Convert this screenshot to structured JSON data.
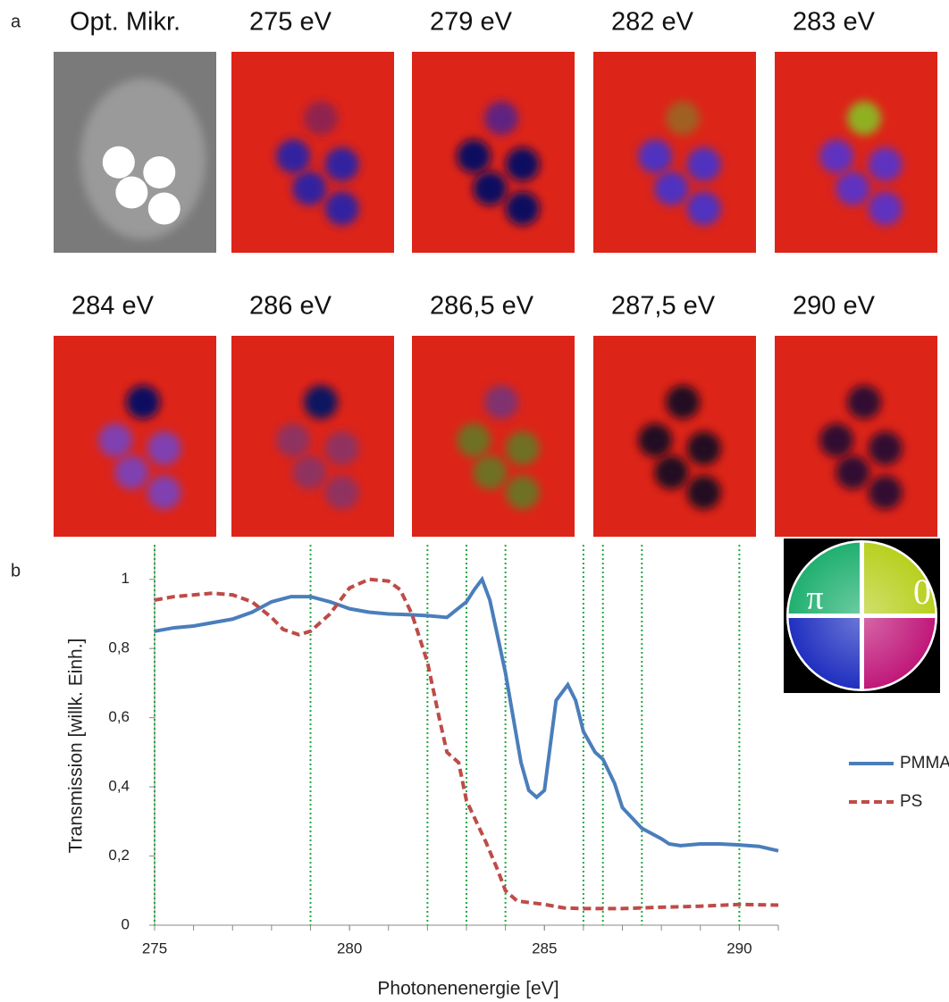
{
  "panel_labels": [
    "a",
    "b"
  ],
  "image_titles": [
    "Opt. Mikr.",
    "275 eV",
    "279 eV",
    "282 eV",
    "283 eV",
    "284 eV",
    "286 eV",
    "286,5 eV",
    "287,5 eV",
    "290 eV"
  ],
  "color_wheel": {
    "left_label": "π",
    "right_label": "0"
  },
  "chart_data": {
    "type": "line",
    "x_label": "Photonenenergie [eV]",
    "y_label": "Transmission [willk. Einh.]",
    "xlim": [
      275,
      291
    ],
    "xticks": [
      275,
      280,
      285,
      290
    ],
    "ylim": [
      0,
      1.1
    ],
    "yticks": [
      0,
      {
        "value": 0.2,
        "label": "0,2"
      },
      {
        "value": 0.4,
        "label": "0,4"
      },
      {
        "value": 0.6,
        "label": "0,6"
      },
      {
        "value": 0.8,
        "label": "0,8"
      },
      1
    ],
    "vlines": [
      275,
      279,
      282,
      283,
      284,
      286,
      286.5,
      287.5,
      290
    ],
    "vline_color": "#22a845",
    "series": [
      {
        "name": "PMMA",
        "color": "#4a7ebb",
        "dash": false,
        "x": [
          275,
          275.5,
          276,
          276.5,
          277,
          277.5,
          278,
          278.5,
          279,
          279.5,
          280,
          280.5,
          281,
          281.5,
          282,
          282.5,
          283,
          283.2,
          283.4,
          283.6,
          284,
          284.4,
          284.6,
          284.8,
          285,
          285.3,
          285.6,
          285.8,
          286,
          286.3,
          286.5,
          286.8,
          287,
          287.5,
          288,
          288.2,
          288.5,
          289,
          289.5,
          290,
          290.5,
          291
        ],
        "values": [
          0.85,
          0.86,
          0.865,
          0.875,
          0.885,
          0.905,
          0.935,
          0.95,
          0.95,
          0.935,
          0.915,
          0.905,
          0.9,
          0.898,
          0.895,
          0.89,
          0.935,
          0.97,
          1.0,
          0.94,
          0.73,
          0.47,
          0.39,
          0.37,
          0.39,
          0.65,
          0.695,
          0.65,
          0.56,
          0.5,
          0.48,
          0.41,
          0.34,
          0.28,
          0.25,
          0.235,
          0.23,
          0.235,
          0.235,
          0.232,
          0.228,
          0.215
        ]
      },
      {
        "name": "PS",
        "color": "#be4b48",
        "dash": true,
        "x": [
          275,
          275.5,
          276,
          276.5,
          277,
          277.5,
          278,
          278.3,
          278.7,
          279,
          279.5,
          280,
          280.5,
          281,
          281.3,
          281.6,
          282,
          282.3,
          282.5,
          282.8,
          283,
          283.5,
          283.8,
          284,
          284.3,
          285,
          285.5,
          286,
          287,
          288,
          289,
          290,
          291
        ],
        "values": [
          0.94,
          0.95,
          0.955,
          0.96,
          0.955,
          0.935,
          0.89,
          0.855,
          0.84,
          0.85,
          0.9,
          0.975,
          1.0,
          0.995,
          0.97,
          0.9,
          0.76,
          0.6,
          0.5,
          0.47,
          0.36,
          0.24,
          0.16,
          0.1,
          0.07,
          0.06,
          0.05,
          0.048,
          0.048,
          0.052,
          0.055,
          0.06,
          0.058
        ]
      }
    ]
  }
}
